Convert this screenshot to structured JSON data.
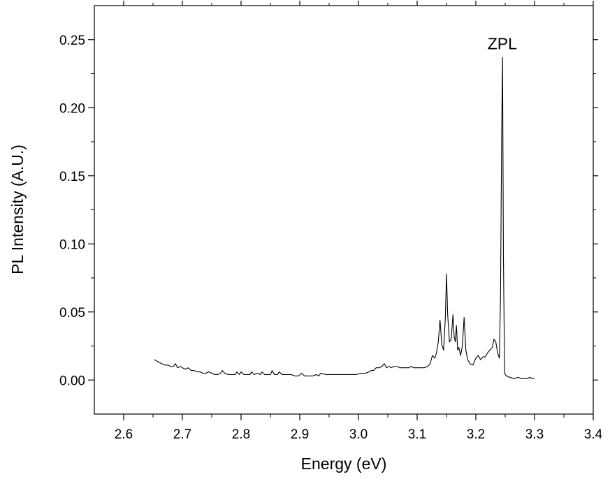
{
  "chart_data": {
    "type": "line",
    "title": "",
    "xlabel": "Energy (eV)",
    "ylabel": "PL Intensity (A.U.)",
    "xlim": [
      2.55,
      3.4
    ],
    "ylim": [
      -0.025,
      0.275
    ],
    "x_ticks": [
      2.6,
      2.7,
      2.8,
      2.9,
      3.0,
      3.1,
      3.2,
      3.3,
      3.4
    ],
    "x_tick_labels": [
      "2.6",
      "2.7",
      "2.8",
      "2.9",
      "3.0",
      "3.1",
      "3.2",
      "3.3",
      "3.4"
    ],
    "y_ticks": [
      0.0,
      0.05,
      0.1,
      0.15,
      0.2,
      0.25
    ],
    "y_tick_labels": [
      "0.00",
      "0.05",
      "0.10",
      "0.15",
      "0.20",
      "0.25"
    ],
    "grid": false,
    "legend": "none",
    "annotations": [
      {
        "text": "ZPL",
        "x": 3.245,
        "y": 0.243
      }
    ],
    "series": [
      {
        "color": "#000000",
        "x": [
          2.652,
          2.656,
          2.66,
          2.665,
          2.67,
          2.675,
          2.68,
          2.685,
          2.688,
          2.692,
          2.697,
          2.7,
          2.705,
          2.71,
          2.715,
          2.72,
          2.725,
          2.73,
          2.735,
          2.74,
          2.745,
          2.75,
          2.755,
          2.76,
          2.765,
          2.768,
          2.772,
          2.778,
          2.785,
          2.79,
          2.793,
          2.797,
          2.8,
          2.805,
          2.81,
          2.815,
          2.818,
          2.822,
          2.828,
          2.833,
          2.836,
          2.84,
          2.845,
          2.85,
          2.853,
          2.857,
          2.862,
          2.865,
          2.87,
          2.878,
          2.885,
          2.892,
          2.898,
          2.903,
          2.908,
          2.915,
          2.922,
          2.928,
          2.932,
          2.936,
          2.945,
          2.955,
          2.965,
          2.975,
          2.985,
          2.995,
          3.005,
          3.012,
          3.018,
          3.022,
          3.026,
          3.03,
          3.035,
          3.04,
          3.044,
          3.048,
          3.052,
          3.056,
          3.06,
          3.064,
          3.067,
          3.07,
          3.075,
          3.08,
          3.086,
          3.09,
          3.094,
          3.1,
          3.106,
          3.112,
          3.118,
          3.122,
          3.126,
          3.13,
          3.133,
          3.136,
          3.139,
          3.142,
          3.145,
          3.148,
          3.15,
          3.152,
          3.155,
          3.158,
          3.161,
          3.163,
          3.165,
          3.167,
          3.169,
          3.171,
          3.174,
          3.177,
          3.18,
          3.183,
          3.186,
          3.19,
          3.195,
          3.2,
          3.204,
          3.208,
          3.212,
          3.216,
          3.22,
          3.224,
          3.228,
          3.231,
          3.234,
          3.237,
          3.24,
          3.242,
          3.244,
          3.2455,
          3.247,
          3.249,
          3.252,
          3.258,
          3.265,
          3.272,
          3.278,
          3.283,
          3.287,
          3.292,
          3.296,
          3.3
        ],
        "values": [
          0.015,
          0.014,
          0.013,
          0.012,
          0.011,
          0.011,
          0.01,
          0.01,
          0.012,
          0.009,
          0.01,
          0.009,
          0.008,
          0.009,
          0.007,
          0.007,
          0.006,
          0.006,
          0.005,
          0.005,
          0.006,
          0.005,
          0.004,
          0.004,
          0.005,
          0.007,
          0.005,
          0.004,
          0.004,
          0.004,
          0.006,
          0.004,
          0.006,
          0.004,
          0.004,
          0.004,
          0.006,
          0.004,
          0.005,
          0.004,
          0.006,
          0.004,
          0.004,
          0.004,
          0.007,
          0.004,
          0.004,
          0.006,
          0.004,
          0.004,
          0.004,
          0.003,
          0.003,
          0.005,
          0.003,
          0.003,
          0.003,
          0.004,
          0.003,
          0.005,
          0.004,
          0.004,
          0.004,
          0.004,
          0.004,
          0.004,
          0.005,
          0.005,
          0.006,
          0.007,
          0.007,
          0.009,
          0.009,
          0.01,
          0.012,
          0.009,
          0.01,
          0.009,
          0.01,
          0.01,
          0.01,
          0.009,
          0.009,
          0.009,
          0.009,
          0.01,
          0.009,
          0.009,
          0.009,
          0.009,
          0.01,
          0.012,
          0.018,
          0.016,
          0.02,
          0.028,
          0.044,
          0.026,
          0.022,
          0.045,
          0.078,
          0.048,
          0.028,
          0.03,
          0.048,
          0.032,
          0.028,
          0.04,
          0.022,
          0.024,
          0.018,
          0.025,
          0.046,
          0.022,
          0.015,
          0.012,
          0.011,
          0.016,
          0.018,
          0.015,
          0.017,
          0.017,
          0.02,
          0.022,
          0.024,
          0.03,
          0.028,
          0.02,
          0.016,
          0.06,
          0.18,
          0.237,
          0.09,
          0.005,
          0.003,
          0.002,
          0.001,
          0.002,
          0.001,
          0.001,
          0.001,
          0.002,
          0.001,
          0.001
        ]
      }
    ]
  }
}
